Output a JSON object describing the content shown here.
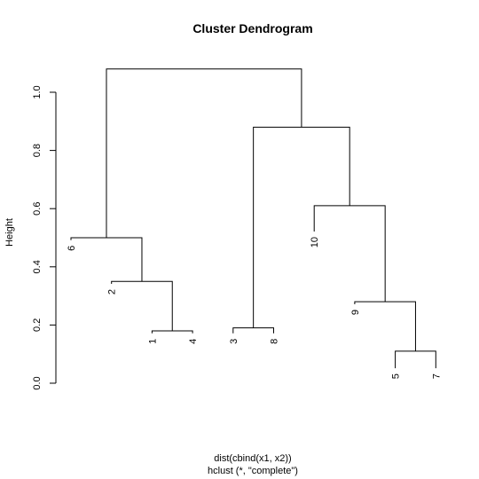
{
  "chart_data": {
    "type": "dendrogram",
    "title": "Cluster Dendrogram",
    "ylabel": "Height",
    "xlabel": "dist(cbind(x1, x2))",
    "sublabel": "hclust (*, \"complete\")",
    "ylim": [
      0,
      1.1
    ],
    "yticks": [
      0.0,
      0.2,
      0.4,
      0.6,
      0.8,
      1.0
    ],
    "ytick_labels": [
      "0.0",
      "0.2",
      "0.4",
      "0.6",
      "0.8",
      "1.0"
    ],
    "leaf_order": [
      "6",
      "2",
      "1",
      "4",
      "3",
      "8",
      "10",
      "9",
      "5",
      "7"
    ],
    "leaf_heights": [
      0.4,
      0.25,
      0.08,
      0.08,
      0.08,
      0.08,
      0.43,
      0.18,
      -0.04,
      -0.04
    ],
    "merges": [
      {
        "left": "1",
        "right": "4",
        "height": 0.18
      },
      {
        "left": "3",
        "right": "8",
        "height": 0.19
      },
      {
        "left": "5",
        "right": "7",
        "height": 0.11
      },
      {
        "left": "9",
        "right": "m3",
        "height": 0.28
      },
      {
        "left": "2",
        "right": "m1",
        "height": 0.35
      },
      {
        "left": "6",
        "right": "m5",
        "height": 0.5
      },
      {
        "left": "10",
        "right": "m4",
        "height": 0.61
      },
      {
        "left": "m2",
        "right": "m7",
        "height": 0.88
      },
      {
        "left": "m6",
        "right": "m8",
        "height": 1.08
      }
    ]
  }
}
